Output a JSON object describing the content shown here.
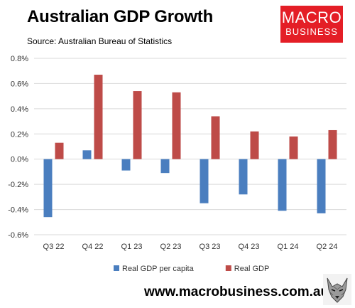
{
  "title": "Australian GDP Growth",
  "source": "Source: Australian Bureau of Statistics",
  "logo": {
    "line1": "MACRO",
    "line2": "BUSINESS",
    "color": "#e41e26"
  },
  "footer_url": "www.macrobusiness.com.au",
  "chart_data": {
    "type": "bar",
    "title": "Australian GDP Growth",
    "categories": [
      "Q3 22",
      "Q4 22",
      "Q1 23",
      "Q2 23",
      "Q3 23",
      "Q4 23",
      "Q1 24",
      "Q2 24"
    ],
    "series": [
      {
        "name": "Real GDP per capita",
        "color": "#4a7ebf",
        "values": [
          -0.46,
          0.07,
          -0.09,
          -0.11,
          -0.35,
          -0.28,
          -0.41,
          -0.43
        ]
      },
      {
        "name": "Real GDP",
        "color": "#be4b48",
        "values": [
          0.13,
          0.67,
          0.54,
          0.53,
          0.34,
          0.22,
          0.18,
          0.23
        ]
      }
    ],
    "ylim": [
      -0.6,
      0.8
    ],
    "yticks": [
      -0.6,
      -0.4,
      -0.2,
      0.0,
      0.2,
      0.4,
      0.6,
      0.8
    ],
    "ytick_labels": [
      "-0.6%",
      "-0.4%",
      "-0.2%",
      "0.0%",
      "0.2%",
      "0.4%",
      "0.6%",
      "0.8%"
    ],
    "grid": true,
    "legend": "bottom"
  }
}
